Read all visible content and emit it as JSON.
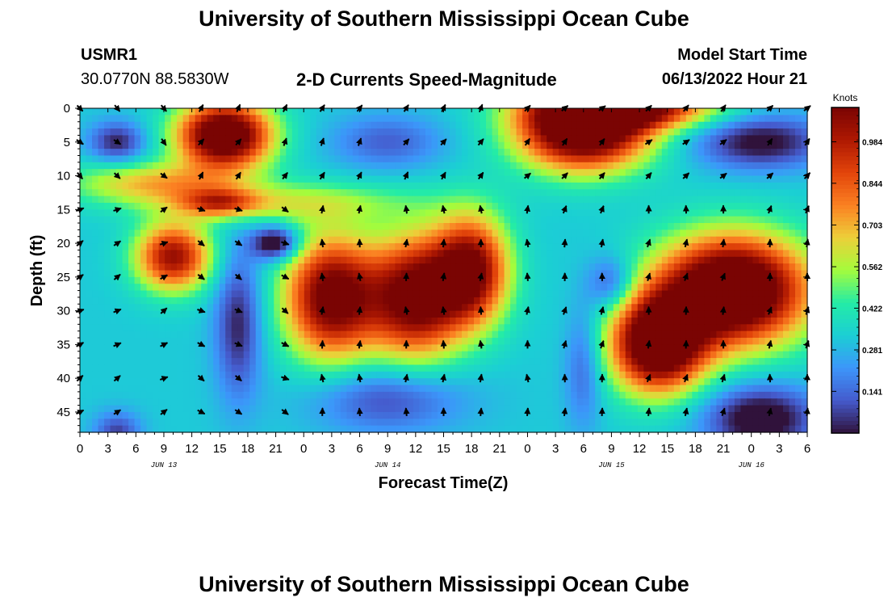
{
  "header": {
    "title": "University of Southern Mississippi Ocean Cube",
    "station_id": "USMR1",
    "coordinates": "30.0770N  88.5830W",
    "chart_title": "2-D Currents Speed-Magnitude",
    "model_start_label": "Model Start Time",
    "model_start_value": "06/13/2022 Hour 21"
  },
  "footer": {
    "title": "University of Southern Mississippi Ocean Cube"
  },
  "chart_data": {
    "type": "heatmap",
    "title": "2-D Currents Speed-Magnitude",
    "xlabel": "Forecast Time(Z)",
    "ylabel": "Depth (ft)",
    "x_tick_labels": [
      "0",
      "3",
      "6",
      "9",
      "12",
      "15",
      "18",
      "21",
      "0",
      "3",
      "6",
      "9",
      "12",
      "15",
      "18",
      "21",
      "0",
      "3",
      "6",
      "9",
      "12",
      "15",
      "18",
      "21",
      "0",
      "3",
      "6"
    ],
    "x_range_hours": [
      0,
      78
    ],
    "date_labels": [
      {
        "label": "JUN 13",
        "hour": 9
      },
      {
        "label": "JUN 14",
        "hour": 33
      },
      {
        "label": "JUN 15",
        "hour": 57
      },
      {
        "label": "JUN 16",
        "hour": 72
      }
    ],
    "y_ticks": [
      0,
      5,
      10,
      15,
      20,
      25,
      30,
      35,
      40,
      45
    ],
    "y_range": [
      0,
      48
    ],
    "colorbar": {
      "title": "Knots",
      "ticks": [
        0.141,
        0.281,
        0.422,
        0.562,
        0.703,
        0.844,
        0.984
      ],
      "range": [
        0,
        1.1
      ]
    },
    "arrow_hours": [
      0,
      4,
      9,
      13,
      17,
      22,
      26,
      30,
      35,
      39,
      43,
      48,
      52,
      56,
      61,
      65,
      69,
      74,
      78
    ],
    "arrow_depths": [
      0,
      5,
      10,
      15,
      20,
      25,
      30,
      35,
      40,
      45
    ],
    "speed_features": [
      {
        "hour": 15.5,
        "depth": 4,
        "sx": 5,
        "sy": 5,
        "value": 1.0
      },
      {
        "hour": 10,
        "depth": 22,
        "sx": 4,
        "sy": 5,
        "value": 0.72
      },
      {
        "hour": 27,
        "depth": 28,
        "sx": 5,
        "sy": 9,
        "value": 0.85
      },
      {
        "hour": 36,
        "depth": 28,
        "sx": 5,
        "sy": 9,
        "value": 0.83
      },
      {
        "hour": 42,
        "depth": 24,
        "sx": 4,
        "sy": 8,
        "value": 0.78
      },
      {
        "hour": 54,
        "depth": 3,
        "sx": 7,
        "sy": 6,
        "value": 1.05
      },
      {
        "hour": 59,
        "depth": 0,
        "sx": 9,
        "sy": 3,
        "value": 0.7
      },
      {
        "hour": 62,
        "depth": 35,
        "sx": 5,
        "sy": 7,
        "value": 1.0
      },
      {
        "hour": 70,
        "depth": 27,
        "sx": 8,
        "sy": 8,
        "value": 1.1
      },
      {
        "hour": 15,
        "depth": 14,
        "sx": 4,
        "sy": 2,
        "value": 0.4
      },
      {
        "hour": 8,
        "depth": 11,
        "sx": 9,
        "sy": 3,
        "value": 0.35
      },
      {
        "hour": 21,
        "depth": 14,
        "sx": 14,
        "sy": 3,
        "value": 0.25
      },
      {
        "hour": 4,
        "depth": 5,
        "sx": 3,
        "sy": 3,
        "value": -0.3
      },
      {
        "hour": 21,
        "depth": 20,
        "sx": 2.5,
        "sy": 2.5,
        "value": -0.45
      },
      {
        "hour": 17,
        "depth": 32,
        "sx": 2.5,
        "sy": 11,
        "value": -0.3
      },
      {
        "hour": 4,
        "depth": 48,
        "sx": 2.5,
        "sy": 3,
        "value": -0.25
      },
      {
        "hour": 33,
        "depth": 5,
        "sx": 6,
        "sy": 4,
        "value": -0.2
      },
      {
        "hour": 33,
        "depth": 43,
        "sx": 8,
        "sy": 5,
        "value": -0.25
      },
      {
        "hour": 57,
        "depth": 26,
        "sx": 2.5,
        "sy": 4,
        "value": -0.25
      },
      {
        "hour": 54,
        "depth": 38,
        "sx": 2,
        "sy": 9,
        "value": -0.2
      },
      {
        "hour": 73,
        "depth": 5,
        "sx": 7,
        "sy": 4,
        "value": -0.35
      },
      {
        "hour": 73,
        "depth": 46,
        "sx": 6,
        "sy": 5,
        "value": -0.4
      }
    ],
    "flow_directions": [
      {
        "hours": [
          0,
          13
        ],
        "depths": [
          0,
          12
        ],
        "angle_deg": 135
      },
      {
        "hours": [
          0,
          13
        ],
        "depths": [
          12,
          48
        ],
        "angle_deg": 60
      },
      {
        "hours": [
          13,
          48
        ],
        "depths": [
          0,
          12
        ],
        "angle_deg": 30
      },
      {
        "hours": [
          13,
          24
        ],
        "depths": [
          12,
          48
        ],
        "angle_deg": 120
      },
      {
        "hours": [
          24,
          52
        ],
        "depths": [
          12,
          48
        ],
        "angle_deg": 0
      },
      {
        "hours": [
          48,
          78
        ],
        "depths": [
          0,
          12
        ],
        "angle_deg": 45
      },
      {
        "hours": [
          52,
          78
        ],
        "depths": [
          12,
          48
        ],
        "angle_deg": 10
      }
    ]
  }
}
